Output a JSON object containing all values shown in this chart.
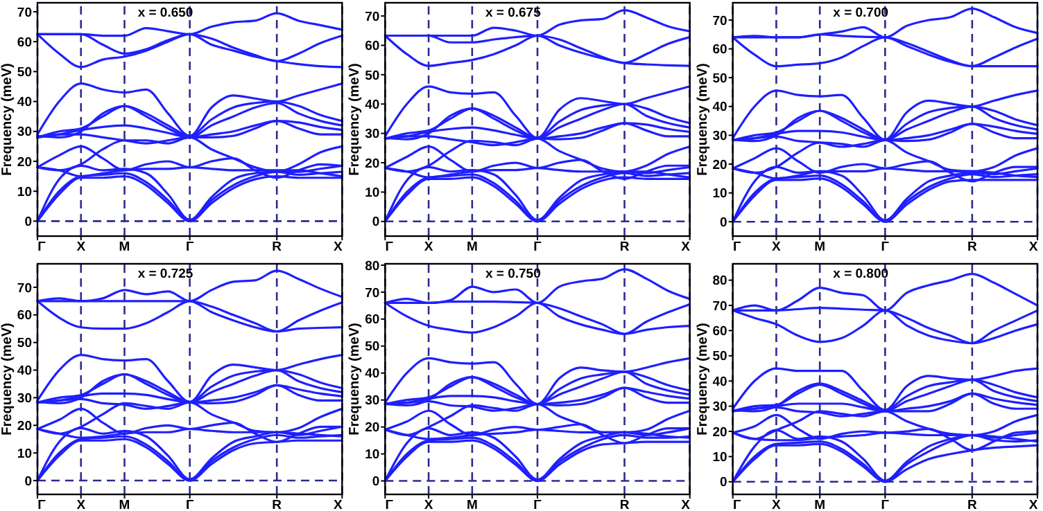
{
  "chart_data": [
    {
      "type": "line",
      "ylabel": "Frequency (meV)",
      "annotations": [
        "x = 0.650"
      ],
      "categories": [
        "Γ",
        null,
        "X",
        null,
        "M",
        null,
        null,
        "Γ",
        null,
        null,
        null,
        "R",
        null,
        null,
        "X"
      ],
      "ylim": [
        -5,
        73
      ],
      "yticks": [
        0,
        10,
        20,
        30,
        40,
        50,
        60,
        70
      ],
      "grid": "x",
      "marker": "none",
      "line_style": "solid",
      "ref_lines": [
        {
          "axis": "y",
          "value": 0,
          "color": "#2b2b8f",
          "line_style": "dashed"
        }
      ],
      "series": [
        {
          "color": "#1f1fff",
          "values": [
            0,
            9,
            14.5,
            14.5,
            15,
            12,
            6,
            0,
            6,
            11,
            14,
            15,
            14.5,
            14.5,
            14.5
          ]
        },
        {
          "color": "#1f1fff",
          "values": [
            0,
            10,
            15,
            15.5,
            16,
            13,
            7,
            0,
            7,
            12,
            15,
            16.5,
            15.5,
            16,
            16.5
          ]
        },
        {
          "color": "#1f1fff",
          "values": [
            0,
            14,
            18.5,
            17,
            17.5,
            16,
            9,
            0.5,
            8,
            14,
            16,
            16.5,
            16.5,
            17.5,
            18.5
          ]
        },
        {
          "color": "#1f1fff",
          "values": [
            18,
            17,
            15,
            16,
            17,
            17.5,
            17.5,
            18,
            17.5,
            17,
            17,
            17,
            17,
            16,
            15
          ]
        },
        {
          "color": "#1f1fff",
          "values": [
            18,
            22,
            25,
            21,
            17,
            19,
            20,
            18,
            20,
            21,
            17,
            14.5,
            17,
            19,
            18.5
          ]
        },
        {
          "color": "#1f1fff",
          "values": [
            18,
            17,
            19,
            24,
            27,
            27,
            26,
            28,
            24,
            21,
            18,
            16.5,
            19,
            23,
            25
          ]
        },
        {
          "color": "#1f1fff",
          "values": [
            28,
            29,
            29,
            28,
            27,
            26,
            27,
            28,
            28,
            28.5,
            31,
            33.5,
            31,
            29,
            29
          ]
        },
        {
          "color": "#1f1fff",
          "values": [
            28,
            29,
            30.5,
            31.5,
            32,
            31,
            29.5,
            28,
            29,
            30,
            32,
            33.5,
            33,
            31.5,
            30.5
          ]
        },
        {
          "color": "#1f1fff",
          "values": [
            28,
            30,
            31,
            35,
            38.5,
            35,
            31,
            28,
            32,
            35,
            38,
            39.5,
            36,
            33.5,
            32
          ]
        },
        {
          "color": "#1f1fff",
          "values": [
            28.5,
            28,
            30,
            36,
            38.5,
            36,
            32,
            28.5,
            34,
            38,
            39.5,
            40,
            38.5,
            35.5,
            33.5
          ]
        },
        {
          "color": "#1f1fff",
          "values": [
            29,
            40,
            46,
            44,
            43,
            44,
            36,
            28.5,
            38,
            42,
            41,
            40,
            42,
            44,
            46
          ]
        },
        {
          "color": "#1f1fff",
          "values": [
            62.5,
            56,
            51.5,
            54,
            55,
            57,
            60,
            62.5,
            59,
            57,
            55,
            53.5,
            52.5,
            51.8,
            51.5
          ]
        },
        {
          "color": "#1f1fff",
          "values": [
            62.5,
            62.5,
            62.5,
            59,
            56,
            57.5,
            60.5,
            62.5,
            61,
            58,
            55.5,
            53.5,
            56,
            59.5,
            62
          ]
        },
        {
          "color": "#1f1fff",
          "values": [
            62.5,
            62.5,
            62.5,
            62,
            62,
            64.5,
            63.5,
            62.5,
            65,
            66.5,
            67,
            69.5,
            67,
            65.5,
            64
          ]
        }
      ]
    },
    {
      "type": "line",
      "ylabel": "Frequency (meV)",
      "annotations": [
        "x = 0.675"
      ],
      "categories": [
        "Γ",
        null,
        "X",
        null,
        "M",
        null,
        null,
        "Γ",
        null,
        null,
        null,
        "R",
        null,
        null,
        "X"
      ],
      "ylim": [
        -5,
        74.5
      ],
      "yticks": [
        0,
        10,
        20,
        30,
        40,
        50,
        60,
        70
      ],
      "grid": "x",
      "marker": "none",
      "line_style": "solid",
      "ref_lines": [
        {
          "axis": "y",
          "value": 0,
          "color": "#2b2b8f",
          "line_style": "dashed"
        }
      ],
      "series": [
        {
          "color": "#1f1fff",
          "values": [
            0,
            9,
            14.5,
            14.5,
            15,
            12,
            6,
            0,
            6,
            11,
            14,
            15,
            14.5,
            14.5,
            14.5
          ]
        },
        {
          "color": "#1f1fff",
          "values": [
            0,
            10,
            15,
            15.5,
            16,
            13,
            7,
            0,
            7,
            12,
            15,
            16.5,
            15.5,
            16,
            16.5
          ]
        },
        {
          "color": "#1f1fff",
          "values": [
            0,
            14,
            18.5,
            17,
            17.5,
            16,
            9,
            0.5,
            8,
            14,
            16,
            17,
            16.5,
            17.5,
            18.5
          ]
        },
        {
          "color": "#1f1fff",
          "values": [
            18.2,
            17,
            15,
            16,
            17,
            17.5,
            17.5,
            18.2,
            17.5,
            17,
            17,
            17,
            17,
            16,
            15
          ]
        },
        {
          "color": "#1f1fff",
          "values": [
            18.2,
            22,
            25.5,
            21,
            17,
            19,
            20,
            18.2,
            20,
            21,
            17,
            14.5,
            17,
            19,
            19
          ]
        },
        {
          "color": "#1f1fff",
          "values": [
            18.2,
            17,
            19,
            24,
            27.5,
            27,
            26,
            28.2,
            24,
            21,
            18,
            17,
            19,
            23,
            25.5
          ]
        },
        {
          "color": "#1f1fff",
          "values": [
            28.2,
            29,
            29,
            28,
            27,
            26,
            27,
            28.2,
            28,
            28.5,
            31,
            33.5,
            31,
            29,
            29
          ]
        },
        {
          "color": "#1f1fff",
          "values": [
            28.2,
            29,
            30.5,
            31.5,
            32,
            31,
            29.5,
            28.2,
            29,
            30,
            32,
            33.5,
            33,
            31.5,
            30.5
          ]
        },
        {
          "color": "#1f1fff",
          "values": [
            28.2,
            30,
            31,
            35,
            38.5,
            35,
            31,
            28.2,
            32,
            35,
            38,
            40,
            36,
            33.5,
            32
          ]
        },
        {
          "color": "#1f1fff",
          "values": [
            28.5,
            28,
            30,
            36,
            38.5,
            36,
            32,
            28.5,
            34,
            38,
            39.5,
            40,
            38.5,
            35.5,
            33.5
          ]
        },
        {
          "color": "#1f1fff",
          "values": [
            29,
            40,
            46,
            44,
            43.5,
            44,
            36,
            28.5,
            38,
            42,
            41,
            40,
            42,
            44,
            46
          ]
        },
        {
          "color": "#1f1fff",
          "values": [
            63.3,
            57,
            53,
            54,
            55,
            57,
            60,
            63.3,
            60,
            57.5,
            55.5,
            54,
            53.5,
            53.2,
            53
          ]
        },
        {
          "color": "#1f1fff",
          "values": [
            63.3,
            63.3,
            63.3,
            61,
            61,
            62,
            62.8,
            63.3,
            62,
            59,
            56,
            54,
            57,
            60.5,
            62.8
          ]
        },
        {
          "color": "#1f1fff",
          "values": [
            63.3,
            63.3,
            63.3,
            63.3,
            63.3,
            66,
            65,
            63.3,
            67,
            68.5,
            69,
            72,
            69.5,
            66.5,
            64.8
          ]
        }
      ]
    },
    {
      "type": "line",
      "ylabel": "Frequency (meV)",
      "annotations": [
        "x = 0.700"
      ],
      "categories": [
        "Γ",
        null,
        "X",
        null,
        "M",
        null,
        null,
        "Γ",
        null,
        null,
        null,
        "R",
        null,
        null,
        "X"
      ],
      "ylim": [
        -5,
        76
      ],
      "yticks": [
        0,
        10,
        20,
        30,
        40,
        50,
        60,
        70
      ],
      "grid": "x",
      "marker": "none",
      "line_style": "solid",
      "ref_lines": [
        {
          "axis": "y",
          "value": 0,
          "color": "#2b2b8f",
          "line_style": "dashed"
        }
      ],
      "series": [
        {
          "color": "#1f1fff",
          "values": [
            0,
            9,
            14.5,
            14.5,
            15,
            12,
            6,
            0,
            6,
            11,
            14,
            14.5,
            14.5,
            14.5,
            14.5
          ]
        },
        {
          "color": "#1f1fff",
          "values": [
            0,
            10,
            15,
            15.5,
            16,
            13,
            7,
            0,
            7,
            12,
            15,
            16.5,
            15.5,
            16,
            16.5
          ]
        },
        {
          "color": "#1f1fff",
          "values": [
            0,
            14,
            19,
            17,
            17.5,
            16,
            9,
            0.5,
            8,
            14,
            16,
            17,
            16.5,
            17.5,
            18.5
          ]
        },
        {
          "color": "#1f1fff",
          "values": [
            18.5,
            17,
            15,
            16,
            17.5,
            17.5,
            17.5,
            18.5,
            18,
            17.5,
            17.5,
            17.5,
            17,
            16,
            15.5
          ]
        },
        {
          "color": "#1f1fff",
          "values": [
            18.5,
            22,
            25.5,
            21,
            17,
            19,
            20,
            18.5,
            20,
            21,
            17,
            14,
            17,
            19,
            19
          ]
        },
        {
          "color": "#1f1fff",
          "values": [
            18.5,
            17,
            19,
            24,
            27.5,
            27,
            26,
            28.3,
            24,
            21,
            18,
            17.5,
            19,
            23,
            25.5
          ]
        },
        {
          "color": "#1f1fff",
          "values": [
            28.3,
            29,
            29.5,
            28,
            27.5,
            26,
            27,
            28.3,
            28,
            28.5,
            31,
            34,
            31,
            29,
            29
          ]
        },
        {
          "color": "#1f1fff",
          "values": [
            28.3,
            29,
            30.5,
            31.5,
            31.5,
            31,
            29.5,
            28.3,
            29,
            30,
            32,
            34,
            33,
            31.5,
            30.5
          ]
        },
        {
          "color": "#1f1fff",
          "values": [
            28.3,
            30,
            31,
            35,
            38.5,
            35,
            31,
            28.3,
            32,
            35,
            38,
            40,
            36,
            33.5,
            32
          ]
        },
        {
          "color": "#1f1fff",
          "values": [
            28.5,
            28,
            30,
            36,
            38.5,
            36,
            32,
            28.5,
            34,
            38,
            39.5,
            40,
            38.5,
            35.5,
            33.5
          ]
        },
        {
          "color": "#1f1fff",
          "values": [
            29,
            40,
            45.5,
            44,
            43.5,
            44,
            36,
            28.5,
            38,
            42,
            41,
            40,
            42,
            44,
            45.5
          ]
        },
        {
          "color": "#1f1fff",
          "values": [
            64,
            58,
            54,
            54.5,
            55,
            57,
            61,
            64,
            61,
            58,
            55.5,
            54,
            54,
            54,
            54
          ]
        },
        {
          "color": "#1f1fff",
          "values": [
            64,
            64,
            64,
            64,
            65,
            64.5,
            64.2,
            64,
            62,
            59,
            56,
            54,
            57,
            60.5,
            63.5
          ]
        },
        {
          "color": "#1f1fff",
          "values": [
            64,
            64.5,
            64,
            64,
            65,
            66,
            67.5,
            64,
            68,
            70,
            71,
            74,
            71,
            67.5,
            65.5
          ]
        }
      ]
    },
    {
      "type": "line",
      "ylabel": "Frequency (meV)",
      "annotations": [
        "x = 0.725"
      ],
      "categories": [
        "Γ",
        null,
        "X",
        null,
        "M",
        null,
        null,
        "Γ",
        null,
        null,
        null,
        "R",
        null,
        null,
        "X"
      ],
      "ylim": [
        -5,
        78.5
      ],
      "yticks": [
        0,
        10,
        20,
        30,
        40,
        50,
        60,
        70
      ],
      "grid": "x",
      "marker": "none",
      "line_style": "solid",
      "ref_lines": [
        {
          "axis": "y",
          "value": 0,
          "color": "#2b2b8f",
          "line_style": "dashed"
        }
      ],
      "series": [
        {
          "color": "#1f1fff",
          "values": [
            0,
            9,
            14.5,
            14.5,
            15,
            12,
            6,
            0,
            6,
            11,
            13.5,
            14,
            14.5,
            14.5,
            14.5
          ]
        },
        {
          "color": "#1f1fff",
          "values": [
            0,
            10,
            15,
            15.5,
            16,
            13,
            7,
            0,
            7,
            12,
            15,
            16.5,
            15.5,
            16,
            16.5
          ]
        },
        {
          "color": "#1f1fff",
          "values": [
            0,
            14,
            19,
            17,
            18,
            16,
            9,
            0.5,
            8,
            14,
            16,
            17.5,
            16.5,
            18,
            19.5
          ]
        },
        {
          "color": "#1f1fff",
          "values": [
            18.7,
            17,
            15.5,
            16,
            17,
            17.5,
            17.5,
            18.7,
            18,
            17.5,
            17.5,
            17.5,
            17,
            16.5,
            16
          ]
        },
        {
          "color": "#1f1fff",
          "values": [
            18.7,
            22,
            26,
            21,
            17,
            19,
            20,
            18.7,
            20,
            21,
            17,
            14,
            17,
            19.5,
            19.5
          ]
        },
        {
          "color": "#1f1fff",
          "values": [
            18.7,
            17,
            19.5,
            24,
            28,
            27,
            26,
            28.3,
            24,
            21,
            18,
            17.5,
            19,
            23,
            26
          ]
        },
        {
          "color": "#1f1fff",
          "values": [
            28.3,
            29,
            29.5,
            28,
            27.5,
            26,
            27,
            28.3,
            28,
            28.5,
            31,
            34.5,
            31,
            29,
            29
          ]
        },
        {
          "color": "#1f1fff",
          "values": [
            28.3,
            29,
            30.5,
            31.5,
            31.5,
            31,
            29.5,
            28.3,
            29,
            30,
            32,
            34.5,
            33,
            31.5,
            30.5
          ]
        },
        {
          "color": "#1f1fff",
          "values": [
            28.3,
            30,
            31,
            35,
            38.5,
            35,
            31,
            28.3,
            32,
            35,
            38,
            40,
            36,
            33.5,
            32
          ]
        },
        {
          "color": "#1f1fff",
          "values": [
            28.5,
            28,
            30,
            36,
            38.5,
            36,
            32,
            28.5,
            34,
            38,
            39.5,
            40,
            38.5,
            35.5,
            33.5
          ]
        },
        {
          "color": "#1f1fff",
          "values": [
            29,
            40,
            45.5,
            44,
            43.5,
            44,
            36,
            28.5,
            38,
            42,
            41,
            40,
            42,
            44,
            45.5
          ]
        },
        {
          "color": "#1f1fff",
          "values": [
            65,
            59,
            55.5,
            55,
            55,
            57,
            61,
            65,
            61,
            58,
            55.5,
            54,
            55,
            55.3,
            55.5
          ]
        },
        {
          "color": "#1f1fff",
          "values": [
            65,
            65,
            65,
            65,
            65,
            65,
            65,
            65,
            63,
            60,
            57,
            54,
            58,
            61.5,
            64.5
          ]
        },
        {
          "color": "#1f1fff",
          "values": [
            65,
            66,
            65,
            66,
            69,
            67.5,
            68.5,
            65,
            69,
            72,
            72.5,
            76,
            73,
            69.5,
            66.5
          ]
        }
      ]
    },
    {
      "type": "line",
      "ylabel": "Frequency (meV)",
      "annotations": [
        "x = 0.750"
      ],
      "categories": [
        "Γ",
        null,
        "X",
        null,
        "M",
        null,
        null,
        "Γ",
        null,
        null,
        null,
        "R",
        null,
        null,
        "X"
      ],
      "ylim": [
        -5,
        80.5
      ],
      "yticks": [
        0,
        10,
        20,
        30,
        40,
        50,
        60,
        70,
        80
      ],
      "grid": "x",
      "marker": "none",
      "line_style": "solid",
      "ref_lines": [
        {
          "axis": "y",
          "value": 0,
          "color": "#2b2b8f",
          "line_style": "dashed"
        }
      ],
      "series": [
        {
          "color": "#1f1fff",
          "values": [
            0,
            9,
            14.5,
            14.5,
            15,
            12,
            6,
            0,
            6,
            11,
            13.5,
            14,
            14.5,
            14.5,
            14.5
          ]
        },
        {
          "color": "#1f1fff",
          "values": [
            0,
            10,
            15,
            15.5,
            16,
            13,
            7,
            0,
            7,
            12,
            15.5,
            17,
            16,
            16,
            16.5
          ]
        },
        {
          "color": "#1f1fff",
          "values": [
            0,
            14,
            19.5,
            17,
            18,
            16,
            9,
            0.5,
            8,
            14,
            16.5,
            18,
            17,
            18,
            19.5
          ]
        },
        {
          "color": "#1f1fff",
          "values": [
            19,
            17,
            15.5,
            16,
            17,
            17.5,
            18,
            19,
            18.5,
            18,
            18,
            18,
            17.5,
            16.5,
            16
          ]
        },
        {
          "color": "#1f1fff",
          "values": [
            19,
            22,
            26,
            21,
            17,
            19,
            20,
            19,
            20,
            21,
            17,
            14,
            17,
            19.5,
            19.5
          ]
        },
        {
          "color": "#1f1fff",
          "values": [
            19,
            17,
            20,
            24,
            28,
            27,
            26,
            28.5,
            24,
            21,
            18,
            18,
            19,
            23,
            26
          ]
        },
        {
          "color": "#1f1fff",
          "values": [
            28.5,
            29,
            29.5,
            28,
            27.5,
            26,
            27,
            28.5,
            28,
            28.5,
            31,
            34.5,
            31,
            29,
            29
          ]
        },
        {
          "color": "#1f1fff",
          "values": [
            28.5,
            29,
            30.5,
            31.5,
            31.5,
            31,
            29.5,
            28.5,
            29,
            30,
            32,
            34.5,
            33,
            31.5,
            30.5
          ]
        },
        {
          "color": "#1f1fff",
          "values": [
            28.5,
            30,
            31,
            35,
            38.5,
            35,
            31,
            28.5,
            32,
            35,
            38,
            40.5,
            36,
            33.5,
            32
          ]
        },
        {
          "color": "#1f1fff",
          "values": [
            28.5,
            28,
            30,
            36,
            38.5,
            36,
            32,
            28.5,
            34,
            38,
            39.5,
            40.5,
            38.5,
            35.5,
            33.5
          ]
        },
        {
          "color": "#1f1fff",
          "values": [
            29,
            40,
            45.5,
            44,
            43.5,
            44,
            36,
            28.5,
            38,
            42,
            41,
            40.5,
            42,
            44,
            45.5
          ]
        },
        {
          "color": "#1f1fff",
          "values": [
            66,
            61,
            57.5,
            56,
            55,
            57,
            61,
            66,
            61,
            58,
            56,
            54.5,
            56,
            57,
            57.5
          ]
        },
        {
          "color": "#1f1fff",
          "values": [
            66,
            66,
            66,
            66.5,
            66.5,
            66.5,
            66.3,
            66,
            64,
            61,
            58,
            54.5,
            59,
            62.5,
            65.5
          ]
        },
        {
          "color": "#1f1fff",
          "values": [
            66,
            67.5,
            66,
            67,
            72,
            70,
            71,
            66,
            72,
            74,
            75,
            78.5,
            75,
            70.5,
            67.5
          ]
        }
      ]
    },
    {
      "type": "line",
      "ylabel": "Frequency (meV)",
      "annotations": [
        "x = 0.800"
      ],
      "categories": [
        "Γ",
        null,
        "X",
        null,
        "M",
        null,
        null,
        "Γ",
        null,
        null,
        null,
        "R",
        null,
        null,
        "X"
      ],
      "ylim": [
        -5,
        86.5
      ],
      "yticks": [
        0,
        10,
        20,
        30,
        40,
        50,
        60,
        70,
        80
      ],
      "grid": "x",
      "marker": "none",
      "line_style": "solid",
      "ref_lines": [
        {
          "axis": "y",
          "value": 0,
          "color": "#2b2b8f",
          "line_style": "dashed"
        }
      ],
      "series": [
        {
          "color": "#1f1fff",
          "values": [
            0,
            9,
            14.5,
            14.5,
            15,
            12,
            6,
            0,
            5,
            9,
            11,
            12.5,
            13.5,
            14,
            14.5
          ]
        },
        {
          "color": "#1f1fff",
          "values": [
            0,
            10,
            15,
            15.5,
            16,
            13,
            7,
            0,
            7,
            12,
            16,
            18.5,
            16.5,
            16,
            16.5
          ]
        },
        {
          "color": "#1f1fff",
          "values": [
            0,
            14,
            20.5,
            17,
            18,
            16,
            9,
            0.5,
            8,
            14,
            17,
            18.5,
            17.5,
            18.5,
            19.5
          ]
        },
        {
          "color": "#1f1fff",
          "values": [
            19.5,
            17,
            16.5,
            16.5,
            17.5,
            18,
            18.5,
            19.5,
            19,
            18.5,
            18.5,
            18.5,
            18,
            17,
            16
          ]
        },
        {
          "color": "#1f1fff",
          "values": [
            19.5,
            22,
            26.5,
            21,
            17,
            19,
            20,
            19.5,
            20,
            21,
            17,
            12.5,
            16,
            19.5,
            20
          ]
        },
        {
          "color": "#1f1fff",
          "values": [
            19.5,
            17,
            20.5,
            24,
            28,
            27,
            26,
            28,
            24,
            21,
            19,
            18.5,
            20,
            24,
            26.5
          ]
        },
        {
          "color": "#1f1fff",
          "values": [
            28,
            29,
            29.5,
            28,
            27.5,
            26,
            27,
            28,
            28,
            28,
            31,
            35,
            31,
            29,
            29
          ]
        },
        {
          "color": "#1f1fff",
          "values": [
            28,
            29,
            30,
            31,
            31,
            31,
            29.5,
            28,
            29,
            30,
            32,
            35,
            33,
            31.5,
            30.5
          ]
        },
        {
          "color": "#1f1fff",
          "values": [
            28,
            30,
            30.5,
            35,
            38.5,
            35,
            31,
            28,
            32,
            35,
            38,
            40.5,
            36,
            33.5,
            32
          ]
        },
        {
          "color": "#1f1fff",
          "values": [
            28.5,
            28,
            30,
            36,
            39,
            36,
            32,
            28.5,
            34,
            38,
            39.5,
            40.5,
            38.5,
            35.5,
            33.5
          ]
        },
        {
          "color": "#1f1fff",
          "values": [
            29,
            40,
            45,
            44,
            44,
            44,
            36,
            28.5,
            38,
            42,
            41,
            40.5,
            42,
            44,
            45
          ]
        },
        {
          "color": "#1f1fff",
          "values": [
            68,
            65,
            62.5,
            58,
            55.5,
            57,
            62,
            68,
            62,
            58,
            56,
            55,
            57,
            60,
            62.5
          ]
        },
        {
          "color": "#1f1fff",
          "values": [
            68,
            68,
            68,
            68.5,
            69,
            68.7,
            68.3,
            68,
            65,
            61,
            58,
            55,
            60,
            64,
            68
          ]
        },
        {
          "color": "#1f1fff",
          "values": [
            68,
            70,
            68,
            72,
            77,
            75,
            74,
            68,
            75,
            78,
            80,
            82.5,
            79,
            74.5,
            70
          ]
        }
      ]
    }
  ]
}
